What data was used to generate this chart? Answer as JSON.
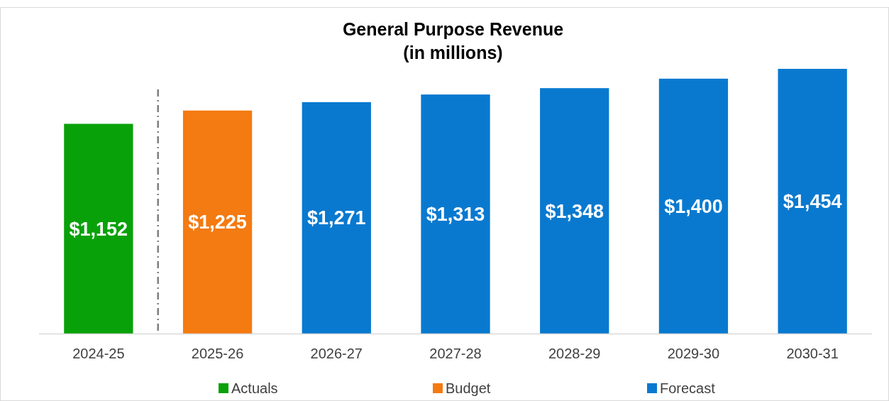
{
  "chart_data": {
    "type": "bar",
    "title": "General Purpose Revenue\n(in millions)",
    "categories": [
      "2024-25",
      "2025-26",
      "2026-27",
      "2027-28",
      "2028-29",
      "2029-30",
      "2030-31"
    ],
    "stacked": true,
    "legend": "bottom",
    "tick_labels": "x",
    "series": [
      {
        "name": "Actuals",
        "color": "#09a10a",
        "values": [
          1152,
          null,
          null,
          null,
          null,
          null,
          null
        ],
        "value_labels": [
          "$1,152",
          null,
          null,
          null,
          null,
          null,
          null
        ]
      },
      {
        "name": "Budget",
        "color": "#f47a12",
        "values": [
          null,
          1225,
          null,
          null,
          null,
          null,
          null
        ],
        "value_labels": [
          null,
          "$1,225",
          null,
          null,
          null,
          null,
          null
        ]
      },
      {
        "name": "Forecast",
        "color": "#0979cf",
        "values": [
          null,
          null,
          1271,
          1313,
          1348,
          1400,
          1454
        ],
        "value_labels": [
          null,
          null,
          "$1,271",
          "$1,313",
          "$1,348",
          "$1,400",
          "$1,454"
        ]
      }
    ]
  }
}
